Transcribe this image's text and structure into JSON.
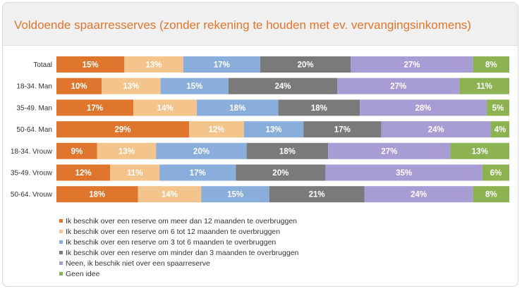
{
  "title": "Voldoende spaarresserves (zonder rekening te houden met ev. vervangingsinkomens)",
  "chart_data": {
    "type": "bar",
    "orientation": "horizontal",
    "stacked": true,
    "percent_labels": true,
    "title": "Voldoende spaarresserves (zonder rekening te houden met ev. vervangingsinkomens)",
    "categories": [
      "Totaal",
      "18-34. Man",
      "35-49. Man",
      "50-64. Man",
      "18-34. Vrouw",
      "35-49. Vrouw",
      "50-64. Vrouw"
    ],
    "series": [
      {
        "name": "Ik beschik over een reserve om meer dan 12 maanden te overbruggen",
        "color": "#e0762d",
        "values": [
          15,
          10,
          17,
          29,
          9,
          12,
          18
        ]
      },
      {
        "name": "Ik beschik over een reserve om 6 tot 12 maanden te overbruggen",
        "color": "#f3c48c",
        "values": [
          13,
          13,
          14,
          12,
          13,
          11,
          14
        ]
      },
      {
        "name": "Ik beschik over een reserve om 3 tot 6 maanden te overbruggen",
        "color": "#8aaedc",
        "values": [
          17,
          15,
          18,
          13,
          20,
          17,
          15
        ]
      },
      {
        "name": "Ik beschik over een reserve om minder dan 3 maanden te overbruggen",
        "color": "#7a7a7a",
        "values": [
          20,
          24,
          18,
          17,
          18,
          20,
          21
        ]
      },
      {
        "name": "Neen, ik beschik niet over een spaarreserve",
        "color": "#a79cd3",
        "values": [
          27,
          27,
          28,
          24,
          27,
          35,
          24
        ]
      },
      {
        "name": "Geen idee",
        "color": "#8cb251",
        "values": [
          8,
          11,
          5,
          4,
          13,
          6,
          8
        ]
      }
    ],
    "legend_position": "bottom",
    "grid": false
  }
}
